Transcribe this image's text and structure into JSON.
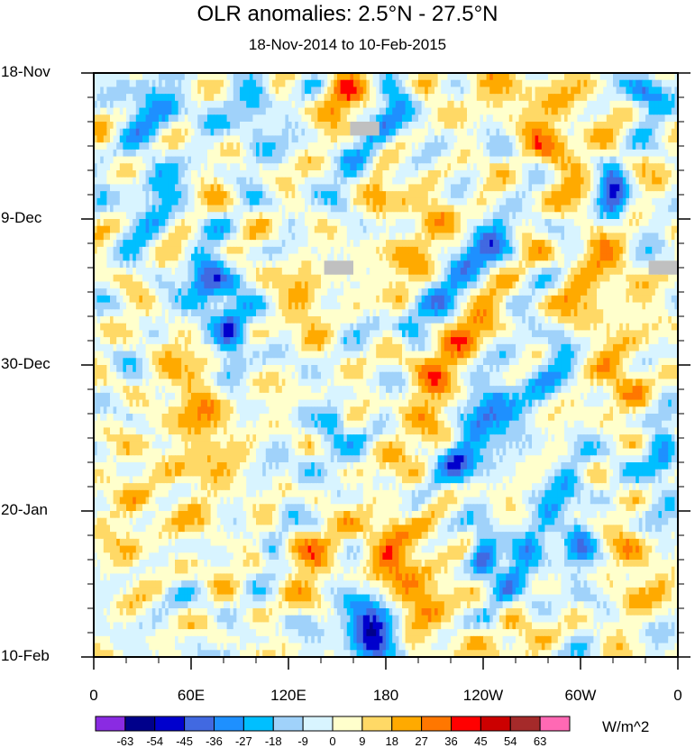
{
  "chart_data": {
    "type": "heatmap",
    "title": "OLR anomalies: 2.5°N - 27.5°N",
    "subtitle": "18-Nov-2014 to 10-Feb-2015",
    "x_ticks": [
      {
        "lon": 0,
        "label": "0"
      },
      {
        "lon": 60,
        "label": "60E"
      },
      {
        "lon": 120,
        "label": "120E"
      },
      {
        "lon": 180,
        "label": "180"
      },
      {
        "lon": 240,
        "label": "120W"
      },
      {
        "lon": 300,
        "label": "60W"
      },
      {
        "lon": 360,
        "label": "0"
      }
    ],
    "xlim": [
      0,
      360
    ],
    "y_ticks": [
      {
        "day": 0,
        "label": "18-Nov"
      },
      {
        "day": 21,
        "label": "9-Dec"
      },
      {
        "day": 42,
        "label": "30-Dec"
      },
      {
        "day": 63,
        "label": "20-Jan"
      },
      {
        "day": 84,
        "label": "10-Feb"
      }
    ],
    "ylim_days": [
      0,
      84
    ],
    "levels": [
      -63,
      -54,
      -45,
      -36,
      -27,
      -18,
      -9,
      0,
      9,
      18,
      27,
      36,
      45,
      54,
      63
    ],
    "level_labels": [
      "-63",
      "-54",
      "-45",
      "-36",
      "-27",
      "-18",
      "-9",
      "0",
      "9",
      "18",
      "27",
      "36",
      "45",
      "54",
      "63"
    ],
    "colors": [
      "#8a2be2",
      "#00008b",
      "#0000cd",
      "#4169e1",
      "#1e90ff",
      "#00bfff",
      "#a0d2fa",
      "#d8f4ff",
      "#ffffcc",
      "#ffd966",
      "#ffaa00",
      "#ff7700",
      "#ff0000",
      "#cc0000",
      "#a52a2a",
      "#ff69b4"
    ],
    "units": "W/m^2",
    "missing_color": "#c0c0c0",
    "missing_regions": [
      {
        "lon": [
          158,
          176
        ],
        "day": [
          7,
          9
        ]
      },
      {
        "lon": [
          142,
          160
        ],
        "day": [
          27,
          29
        ]
      },
      {
        "lon": [
          342,
          360
        ],
        "day": [
          27,
          29
        ]
      }
    ],
    "features": [
      {
        "type": "streak",
        "lon0": 190,
        "day0": 4,
        "lon1": 150,
        "day1": 18,
        "value": -30,
        "w": 9
      },
      {
        "type": "streak",
        "lon0": 250,
        "day0": 22,
        "lon1": 195,
        "day1": 36,
        "value": -38,
        "w": 9
      },
      {
        "type": "streak",
        "lon0": 290,
        "day0": 40,
        "lon1": 225,
        "day1": 56,
        "value": -40,
        "w": 10
      },
      {
        "type": "streak",
        "lon0": 300,
        "day0": 55,
        "lon1": 245,
        "day1": 78,
        "value": -34,
        "w": 9
      },
      {
        "type": "streak",
        "lon0": 250,
        "day0": 46,
        "lon1": 195,
        "day1": 64,
        "value": -32,
        "w": 8
      },
      {
        "type": "streak",
        "lon0": 150,
        "day0": 50,
        "lon1": 110,
        "day1": 68,
        "value": -30,
        "w": 8
      },
      {
        "type": "blob",
        "lon": 170,
        "day": 80,
        "value": -58,
        "rx": 16,
        "ry": 4
      },
      {
        "type": "blob",
        "lon": 70,
        "day": 31,
        "value": -45,
        "rx": 12,
        "ry": 5
      },
      {
        "type": "blob",
        "lon": 85,
        "day": 38,
        "value": -40,
        "rx": 10,
        "ry": 6
      },
      {
        "type": "blob",
        "lon": 240,
        "day": 69,
        "value": -45,
        "rx": 8,
        "ry": 3
      },
      {
        "type": "blob",
        "lon": 320,
        "day": 18,
        "value": -42,
        "rx": 9,
        "ry": 4
      },
      {
        "type": "blob",
        "lon": 340,
        "day": 3,
        "value": -30,
        "rx": 12,
        "ry": 3
      },
      {
        "type": "blob",
        "lon": 40,
        "day": 5,
        "value": -28,
        "rx": 18,
        "ry": 4
      },
      {
        "type": "blob",
        "lon": 350,
        "day": 55,
        "value": -30,
        "rx": 10,
        "ry": 6
      },
      {
        "type": "blob",
        "lon": 300,
        "day": 70,
        "value": -28,
        "rx": 10,
        "ry": 5
      },
      {
        "type": "blob",
        "lon": 100,
        "day": 6,
        "value": -25,
        "rx": 12,
        "ry": 5
      },
      {
        "type": "blob",
        "lon": 35,
        "day": 18,
        "value": -22,
        "rx": 15,
        "ry": 6
      },
      {
        "type": "streak",
        "lon0": 215,
        "day0": 20,
        "lon1": 190,
        "day1": 30,
        "value": 30,
        "w": 12
      },
      {
        "type": "streak",
        "lon0": 240,
        "day0": 33,
        "lon1": 200,
        "day1": 46,
        "value": 28,
        "w": 12
      },
      {
        "type": "streak",
        "lon0": 215,
        "day0": 52,
        "lon1": 180,
        "day1": 68,
        "value": 30,
        "w": 14
      },
      {
        "type": "blob",
        "lon": 200,
        "day": 75,
        "value": 28,
        "rx": 18,
        "ry": 6
      },
      {
        "type": "blob",
        "lon": 130,
        "day": 68,
        "value": 22,
        "rx": 20,
        "ry": 6
      },
      {
        "type": "blob",
        "lon": 65,
        "day": 50,
        "value": 20,
        "rx": 22,
        "ry": 14
      },
      {
        "type": "blob",
        "lon": 175,
        "day": 17,
        "value": 22,
        "rx": 12,
        "ry": 4
      },
      {
        "type": "blob",
        "lon": 285,
        "day": 8,
        "value": 22,
        "rx": 20,
        "ry": 8
      },
      {
        "type": "blob",
        "lon": 150,
        "day": 4,
        "value": 26,
        "rx": 14,
        "ry": 4
      },
      {
        "type": "blob",
        "lon": 310,
        "day": 30,
        "value": 18,
        "rx": 22,
        "ry": 10
      },
      {
        "type": "blob",
        "lon": 330,
        "day": 72,
        "value": 20,
        "rx": 14,
        "ry": 6
      },
      {
        "type": "blob",
        "lon": 250,
        "day": 80,
        "value": 18,
        "rx": 20,
        "ry": 5
      },
      {
        "type": "blob",
        "lon": 20,
        "day": 64,
        "value": 15,
        "rx": 14,
        "ry": 8
      },
      {
        "type": "blob",
        "lon": 330,
        "day": 45,
        "value": 16,
        "rx": 18,
        "ry": 6
      },
      {
        "type": "blob",
        "lon": 130,
        "day": 32,
        "value": 18,
        "rx": 14,
        "ry": 6
      },
      {
        "type": "blob",
        "lon": 240,
        "day": 2,
        "value": 20,
        "rx": 20,
        "ry": 3
      }
    ]
  },
  "units_label": "W/m^2"
}
